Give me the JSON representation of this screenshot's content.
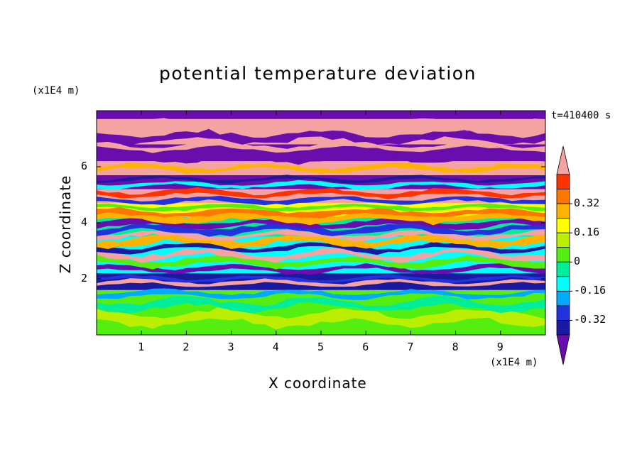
{
  "chart_data": {
    "type": "heatmap",
    "title": "potential temperature deviation",
    "xlabel": "X coordinate",
    "ylabel": "Z coordinate",
    "x_unit": "(x1E4 m)",
    "y_unit": "(x1E4 m)",
    "time_label": "t=410400 s",
    "xlim": [
      0,
      10
    ],
    "ylim": [
      0,
      8
    ],
    "x_ticks": [
      "1",
      "2",
      "3",
      "4",
      "5",
      "6",
      "7",
      "8",
      "9"
    ],
    "y_ticks": [
      "2",
      "4",
      "6"
    ],
    "colorbar": {
      "levels": [
        -0.48,
        -0.4,
        -0.32,
        -0.24,
        -0.16,
        -0.08,
        0,
        0.08,
        0.16,
        0.24,
        0.32,
        0.4,
        0.48
      ],
      "colors": [
        "#6a0dad",
        "#1a1aa0",
        "#2233dd",
        "#00aaff",
        "#00ffff",
        "#00ee99",
        "#55ee11",
        "#bbee00",
        "#ffff00",
        "#ffb300",
        "#ff7700",
        "#ff3300",
        "#f4a3a3"
      ],
      "labels": [
        "0.32",
        "0.16",
        "0",
        "-0.16",
        "-0.32"
      ],
      "extend": "both"
    },
    "bands": [
      {
        "z": [
          7.7,
          8.0
        ],
        "value": "low"
      },
      {
        "z": [
          7.35,
          7.7
        ],
        "value": "high"
      },
      {
        "z": [
          6.8,
          7.35
        ],
        "value": "high"
      },
      {
        "z": [
          6.2,
          6.8
        ],
        "value": "low"
      },
      {
        "z": [
          5.7,
          6.2
        ],
        "value": "high"
      },
      {
        "z": [
          5.2,
          5.7
        ],
        "value": "low"
      },
      {
        "z": [
          4.7,
          5.2
        ],
        "value": "high"
      },
      {
        "z": [
          4.2,
          4.7
        ],
        "value": "mid-high"
      },
      {
        "z": [
          3.5,
          4.2
        ],
        "value": "mixed"
      },
      {
        "z": [
          2.2,
          3.5
        ],
        "value": "mixed"
      },
      {
        "z": [
          1.6,
          2.2
        ],
        "value": "low"
      },
      {
        "z": [
          0.0,
          1.6
        ],
        "value": "near-zero"
      }
    ]
  }
}
